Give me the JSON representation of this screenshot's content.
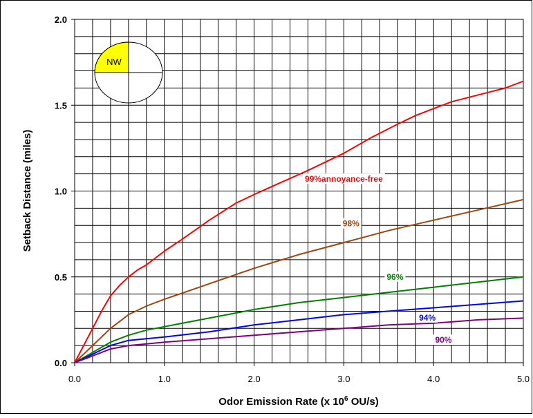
{
  "chart_data": {
    "type": "line",
    "xlabel": "Odor Emission Rate (x 10",
    "xlabel_superscript": "6",
    "xlabel_suffix": " OU/s)",
    "ylabel": "Setback Distance (miles)",
    "xlim": [
      0,
      5
    ],
    "ylim": [
      0,
      2
    ],
    "x_ticks": [
      "0.0",
      "1.0",
      "2.0",
      "3.0",
      "4.0",
      "5.0"
    ],
    "y_ticks": [
      "0.0",
      "0.5",
      "1.0",
      "1.5",
      "2.0"
    ],
    "grid": true,
    "compass": {
      "label": "NW",
      "highlight_color": "#ffff00"
    },
    "series": [
      {
        "name": "99%annoyance-free",
        "color": "#ff0000",
        "x": [
          0,
          0.1,
          0.2,
          0.3,
          0.4,
          0.5,
          0.6,
          0.7,
          0.8,
          1.0,
          1.2,
          1.5,
          1.8,
          2.0,
          2.3,
          2.6,
          3.0,
          3.3,
          3.6,
          3.8,
          4.0,
          4.2,
          4.5,
          4.8,
          5.0
        ],
        "y": [
          0,
          0.1,
          0.2,
          0.3,
          0.39,
          0.45,
          0.5,
          0.54,
          0.57,
          0.65,
          0.72,
          0.83,
          0.93,
          0.98,
          1.05,
          1.12,
          1.22,
          1.31,
          1.39,
          1.44,
          1.48,
          1.52,
          1.56,
          1.6,
          1.64
        ]
      },
      {
        "name": "98%",
        "color": "#a0440e",
        "x": [
          0,
          0.2,
          0.4,
          0.6,
          0.8,
          1.0,
          1.5,
          2.0,
          2.5,
          3.0,
          3.5,
          4.0,
          4.5,
          5.0
        ],
        "y": [
          0,
          0.1,
          0.2,
          0.28,
          0.33,
          0.37,
          0.46,
          0.55,
          0.63,
          0.7,
          0.77,
          0.83,
          0.89,
          0.95
        ]
      },
      {
        "name": "96%",
        "color": "#008000",
        "x": [
          0,
          0.2,
          0.4,
          0.6,
          0.8,
          1.0,
          1.5,
          2.0,
          2.5,
          3.0,
          3.5,
          4.0,
          4.5,
          5.0
        ],
        "y": [
          0,
          0.06,
          0.12,
          0.16,
          0.19,
          0.21,
          0.26,
          0.31,
          0.35,
          0.38,
          0.41,
          0.44,
          0.47,
          0.5
        ]
      },
      {
        "name": "94%",
        "color": "#0000ff",
        "x": [
          0,
          0.2,
          0.4,
          0.6,
          0.8,
          1.0,
          1.5,
          2.0,
          2.5,
          3.0,
          3.5,
          4.0,
          4.5,
          5.0
        ],
        "y": [
          0,
          0.05,
          0.1,
          0.13,
          0.14,
          0.15,
          0.18,
          0.22,
          0.25,
          0.28,
          0.3,
          0.32,
          0.34,
          0.36
        ]
      },
      {
        "name": "90%",
        "color": "#800080",
        "x": [
          0,
          0.2,
          0.4,
          0.6,
          0.8,
          1.0,
          1.5,
          2.0,
          2.5,
          3.0,
          3.5,
          4.0,
          4.5,
          5.0
        ],
        "y": [
          0,
          0.04,
          0.08,
          0.1,
          0.11,
          0.12,
          0.14,
          0.16,
          0.18,
          0.2,
          0.22,
          0.23,
          0.25,
          0.26
        ]
      }
    ],
    "labels": [
      {
        "text": "99%annoyance-free",
        "x": 3.0,
        "y": 1.07,
        "color": "#ff0000"
      },
      {
        "text": "98%",
        "x": 3.08,
        "y": 0.81,
        "color": "#a0440e"
      },
      {
        "text": "96%",
        "x": 3.57,
        "y": 0.5,
        "color": "#008000"
      },
      {
        "text": "94%",
        "x": 3.93,
        "y": 0.262,
        "color": "#0000ff"
      },
      {
        "text": "90%",
        "x": 4.11,
        "y": 0.132,
        "color": "#800080"
      }
    ]
  }
}
